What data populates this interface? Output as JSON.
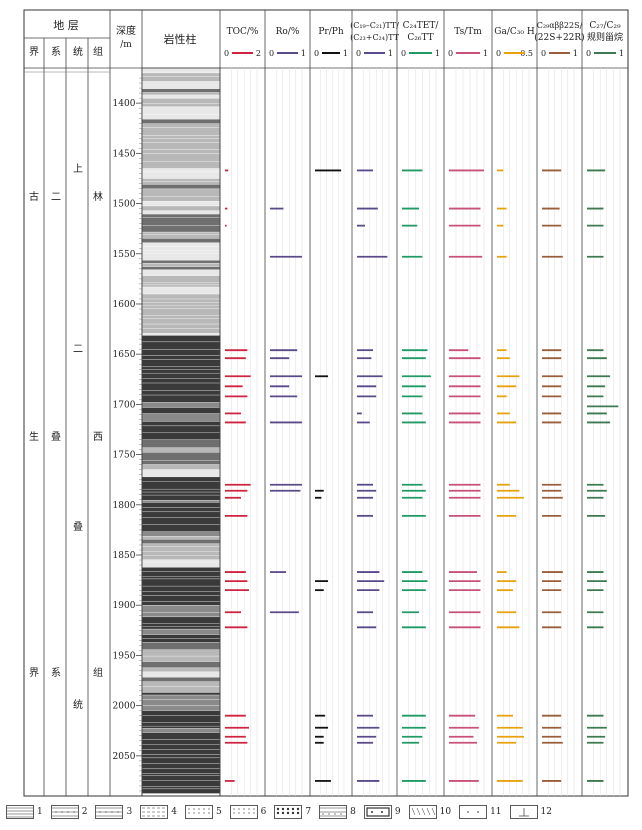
{
  "chart_data": {
    "type": "well-log",
    "title": "",
    "depth_axis": {
      "label_top": "深度",
      "label_bottom": "/m",
      "range": [
        1365,
        2090
      ],
      "ticks": [
        1400,
        1450,
        1500,
        1550,
        1600,
        1650,
        1700,
        1750,
        1800,
        1850,
        1900,
        1950,
        2000,
        2050
      ]
    },
    "strata": {
      "header": "地 层",
      "columns": [
        "界",
        "系",
        "统",
        "组"
      ],
      "jie": [
        "古",
        "生",
        "界"
      ],
      "xi": [
        "二",
        "叠",
        "系"
      ],
      "tong": [
        "上",
        "二",
        "叠",
        "统"
      ],
      "zu": [
        "林",
        "西",
        "组"
      ]
    },
    "lithology": {
      "header": "岩性柱"
    },
    "tracks": [
      {
        "id": "toc",
        "title": [
          "TOC/%"
        ],
        "scale_min": "0",
        "scale_max": "2",
        "max": 2,
        "color": "#d0233f",
        "samples": [
          [
            1467,
            0.2
          ],
          [
            1505,
            0.15
          ],
          [
            1522,
            0.1
          ],
          [
            1646,
            1.4
          ],
          [
            1654,
            1.3
          ],
          [
            1672,
            1.6
          ],
          [
            1682,
            1.1
          ],
          [
            1692,
            1.4
          ],
          [
            1709,
            1.0
          ],
          [
            1718,
            1.3
          ],
          [
            1780,
            1.6
          ],
          [
            1786,
            1.4
          ],
          [
            1793,
            1.0
          ],
          [
            1811,
            1.4
          ],
          [
            1867,
            1.3
          ],
          [
            1876,
            1.4
          ],
          [
            1885,
            1.5
          ],
          [
            1907,
            1.0
          ],
          [
            1922,
            1.4
          ],
          [
            2010,
            1.3
          ],
          [
            2022,
            1.5
          ],
          [
            2031,
            1.3
          ],
          [
            2037,
            1.4
          ],
          [
            2075,
            0.6
          ]
        ]
      },
      {
        "id": "ro",
        "title": [
          "Ro/%"
        ],
        "scale_min": "0",
        "scale_max": "1",
        "max": 1,
        "color": "#5a4a8a",
        "samples": [
          [
            1505,
            0.42
          ],
          [
            1553,
            1.0
          ],
          [
            1646,
            0.85
          ],
          [
            1654,
            0.6
          ],
          [
            1672,
            1.0
          ],
          [
            1682,
            0.6
          ],
          [
            1692,
            0.85
          ],
          [
            1718,
            1.0
          ],
          [
            1780,
            1.0
          ],
          [
            1786,
            0.95
          ],
          [
            1867,
            0.5
          ],
          [
            1907,
            0.9
          ]
        ]
      },
      {
        "id": "prph",
        "title": [
          "Pr/Ph"
        ],
        "scale_min": "0",
        "scale_max": "1",
        "max": 1,
        "color": "#111111",
        "samples": [
          [
            1467,
            0.9
          ],
          [
            1672,
            0.45
          ],
          [
            1786,
            0.3
          ],
          [
            1793,
            0.22
          ],
          [
            1876,
            0.45
          ],
          [
            1885,
            0.3
          ],
          [
            2010,
            0.35
          ],
          [
            2022,
            0.45
          ],
          [
            2031,
            0.3
          ],
          [
            2037,
            0.3
          ],
          [
            2075,
            0.55
          ]
        ]
      },
      {
        "id": "ctt",
        "title": [
          "(C₁₉–C₂₁)TT/",
          "(C₂₃+C₂₄)TT"
        ],
        "scale_min": "0",
        "scale_max": "1",
        "max": 1,
        "color": "#5a4a8a",
        "samples": [
          [
            1467,
            0.5
          ],
          [
            1505,
            0.65
          ],
          [
            1522,
            0.25
          ],
          [
            1553,
            0.95
          ],
          [
            1646,
            0.5
          ],
          [
            1654,
            0.45
          ],
          [
            1672,
            0.8
          ],
          [
            1682,
            0.6
          ],
          [
            1692,
            0.6
          ],
          [
            1709,
            0.15
          ],
          [
            1718,
            0.4
          ],
          [
            1780,
            0.5
          ],
          [
            1786,
            0.6
          ],
          [
            1793,
            0.5
          ],
          [
            1811,
            0.5
          ],
          [
            1867,
            0.7
          ],
          [
            1876,
            0.85
          ],
          [
            1885,
            0.7
          ],
          [
            1907,
            0.5
          ],
          [
            1922,
            0.6
          ],
          [
            2010,
            0.5
          ],
          [
            2022,
            0.7
          ],
          [
            2031,
            0.6
          ],
          [
            2037,
            0.5
          ],
          [
            2075,
            0.7
          ]
        ]
      },
      {
        "id": "c24tet",
        "title": [
          "C₂₄TET/",
          "C₂₆TT"
        ],
        "scale_min": "0",
        "scale_max": "1",
        "max": 1,
        "color": "#1f9a63",
        "samples": [
          [
            1467,
            0.6
          ],
          [
            1505,
            0.5
          ],
          [
            1522,
            0.45
          ],
          [
            1553,
            0.6
          ],
          [
            1646,
            0.75
          ],
          [
            1654,
            0.7
          ],
          [
            1672,
            0.85
          ],
          [
            1682,
            0.7
          ],
          [
            1692,
            0.6
          ],
          [
            1709,
            0.6
          ],
          [
            1718,
            0.7
          ],
          [
            1780,
            0.6
          ],
          [
            1786,
            0.7
          ],
          [
            1793,
            0.6
          ],
          [
            1811,
            0.7
          ],
          [
            1867,
            0.6
          ],
          [
            1876,
            0.75
          ],
          [
            1885,
            0.7
          ],
          [
            1907,
            0.5
          ],
          [
            1922,
            0.7
          ],
          [
            2010,
            0.7
          ],
          [
            2022,
            0.7
          ],
          [
            2031,
            0.6
          ],
          [
            2037,
            0.5
          ],
          [
            2075,
            0.7
          ]
        ]
      },
      {
        "id": "tstm",
        "title": [
          "Ts/Tm"
        ],
        "scale_min": "0",
        "scale_max": "1",
        "max": 1,
        "color": "#c9507a",
        "samples": [
          [
            1467,
            1.0
          ],
          [
            1505,
            0.9
          ],
          [
            1522,
            0.9
          ],
          [
            1553,
            0.95
          ],
          [
            1646,
            0.55
          ],
          [
            1654,
            0.9
          ],
          [
            1672,
            0.9
          ],
          [
            1682,
            0.9
          ],
          [
            1692,
            0.9
          ],
          [
            1709,
            0.9
          ],
          [
            1718,
            0.9
          ],
          [
            1780,
            0.9
          ],
          [
            1786,
            0.9
          ],
          [
            1793,
            0.9
          ],
          [
            1811,
            0.9
          ],
          [
            1867,
            0.8
          ],
          [
            1876,
            0.9
          ],
          [
            1885,
            0.9
          ],
          [
            1907,
            0.9
          ],
          [
            1922,
            0.9
          ],
          [
            2010,
            0.75
          ],
          [
            2022,
            0.85
          ],
          [
            2031,
            0.7
          ],
          [
            2037,
            0.8
          ],
          [
            2075,
            0.85
          ]
        ]
      },
      {
        "id": "ga",
        "title": [
          "Ga/C₃₀ H"
        ],
        "scale_min": "0",
        "scale_max": "0.5",
        "max": 0.5,
        "color": "#e8a20b",
        "samples": [
          [
            1467,
            0.1
          ],
          [
            1505,
            0.15
          ],
          [
            1522,
            0.1
          ],
          [
            1553,
            0.15
          ],
          [
            1646,
            0.15
          ],
          [
            1654,
            0.2
          ],
          [
            1672,
            0.35
          ],
          [
            1682,
            0.3
          ],
          [
            1692,
            0.15
          ],
          [
            1709,
            0.2
          ],
          [
            1718,
            0.3
          ],
          [
            1780,
            0.2
          ],
          [
            1786,
            0.35
          ],
          [
            1793,
            0.42
          ],
          [
            1811,
            0.3
          ],
          [
            1867,
            0.15
          ],
          [
            1876,
            0.3
          ],
          [
            1885,
            0.25
          ],
          [
            1907,
            0.3
          ],
          [
            1922,
            0.35
          ],
          [
            2010,
            0.25
          ],
          [
            2022,
            0.4
          ],
          [
            2031,
            0.42
          ],
          [
            2037,
            0.3
          ],
          [
            2075,
            0.4
          ]
        ]
      },
      {
        "id": "c29",
        "title": [
          "C₂₉αββ22S/",
          "(22S+22R)"
        ],
        "scale_min": "0",
        "scale_max": "1",
        "max": 1,
        "color": "#9b5e3a",
        "samples": [
          [
            1467,
            0.6
          ],
          [
            1505,
            0.55
          ],
          [
            1522,
            0.6
          ],
          [
            1553,
            0.65
          ],
          [
            1646,
            0.6
          ],
          [
            1654,
            0.6
          ],
          [
            1672,
            0.65
          ],
          [
            1682,
            0.6
          ],
          [
            1692,
            0.6
          ],
          [
            1709,
            0.6
          ],
          [
            1718,
            0.6
          ],
          [
            1780,
            0.6
          ],
          [
            1786,
            0.6
          ],
          [
            1793,
            0.65
          ],
          [
            1811,
            0.6
          ],
          [
            1867,
            0.65
          ],
          [
            1876,
            0.6
          ],
          [
            1885,
            0.6
          ],
          [
            1907,
            0.6
          ],
          [
            1922,
            0.6
          ],
          [
            2010,
            0.6
          ],
          [
            2022,
            0.6
          ],
          [
            2031,
            0.6
          ],
          [
            2037,
            0.65
          ],
          [
            2075,
            0.6
          ]
        ]
      },
      {
        "id": "c27c29",
        "title": [
          "C₂₇/C₂₉",
          "规则甾烷"
        ],
        "scale_min": "0",
        "scale_max": "1",
        "max": 1,
        "color": "#3d7a4f",
        "samples": [
          [
            1467,
            0.55
          ],
          [
            1505,
            0.5
          ],
          [
            1522,
            0.5
          ],
          [
            1553,
            0.5
          ],
          [
            1646,
            0.5
          ],
          [
            1654,
            0.6
          ],
          [
            1672,
            0.7
          ],
          [
            1682,
            0.55
          ],
          [
            1692,
            0.5
          ],
          [
            1702,
            0.95
          ],
          [
            1709,
            0.6
          ],
          [
            1718,
            0.7
          ],
          [
            1780,
            0.5
          ],
          [
            1786,
            0.6
          ],
          [
            1793,
            0.5
          ],
          [
            1811,
            0.55
          ],
          [
            1867,
            0.5
          ],
          [
            1876,
            0.6
          ],
          [
            1885,
            0.5
          ],
          [
            1907,
            0.5
          ],
          [
            1922,
            0.5
          ],
          [
            2010,
            0.5
          ],
          [
            2022,
            0.6
          ],
          [
            2031,
            0.55
          ],
          [
            2037,
            0.5
          ],
          [
            2075,
            0.5
          ]
        ]
      }
    ],
    "legend": [
      "1",
      "2",
      "3",
      "4",
      "5",
      "6",
      "7",
      "8",
      "9",
      "10",
      "11",
      "12"
    ]
  }
}
